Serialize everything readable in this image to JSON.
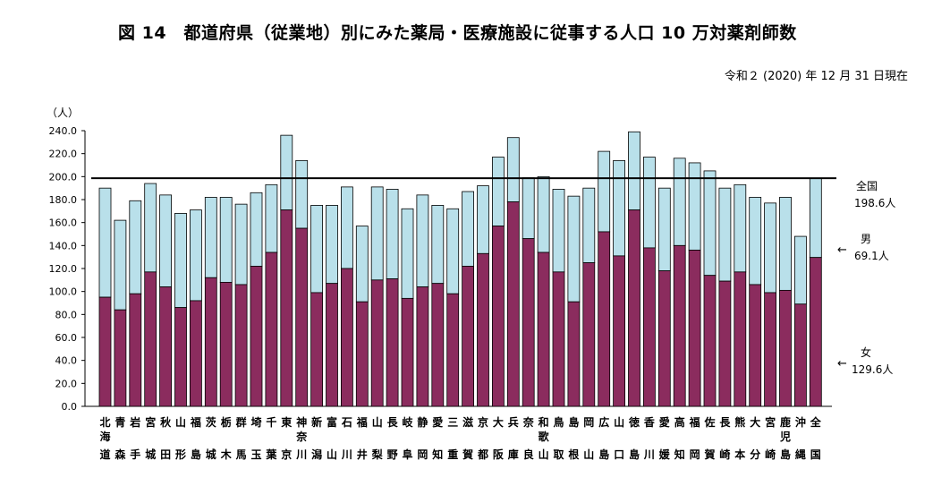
{
  "title": "図 14　都道府県（従業地）別にみた薬局・医療施設に従事する人口 10 万対薬剤師数",
  "date_note": "令和２ (2020) 年 12 月 31 日現在",
  "colors": {
    "female": "#8b2c5e",
    "male": "#b9e0ea",
    "outline": "#000000",
    "national_line": "#000000"
  },
  "chart_data": {
    "type": "bar",
    "stacked": true,
    "ylabel": "（人）",
    "ylim": [
      0,
      240
    ],
    "ytick_step": 20,
    "ytick_labels": [
      "0.0",
      "20.0",
      "40.0",
      "60.0",
      "80.0",
      "100.0",
      "120.0",
      "140.0",
      "160.0",
      "180.0",
      "200.0",
      "220.0",
      "240.0"
    ],
    "categories": [
      [
        "北",
        "海",
        "道"
      ],
      [
        "青",
        "",
        "森"
      ],
      [
        "岩",
        "",
        "手"
      ],
      [
        "宮",
        "",
        "城"
      ],
      [
        "秋",
        "",
        "田"
      ],
      [
        "山",
        "",
        "形"
      ],
      [
        "福",
        "",
        "島"
      ],
      [
        "茨",
        "",
        "城"
      ],
      [
        "栃",
        "",
        "木"
      ],
      [
        "群",
        "",
        "馬"
      ],
      [
        "埼",
        "",
        "玉"
      ],
      [
        "千",
        "",
        "葉"
      ],
      [
        "東",
        "",
        "京"
      ],
      [
        "神",
        "奈",
        "川"
      ],
      [
        "新",
        "",
        "潟"
      ],
      [
        "富",
        "",
        "山"
      ],
      [
        "石",
        "",
        "川"
      ],
      [
        "福",
        "",
        "井"
      ],
      [
        "山",
        "",
        "梨"
      ],
      [
        "長",
        "",
        "野"
      ],
      [
        "岐",
        "",
        "阜"
      ],
      [
        "静",
        "",
        "岡"
      ],
      [
        "愛",
        "",
        "知"
      ],
      [
        "三",
        "",
        "重"
      ],
      [
        "滋",
        "",
        "賀"
      ],
      [
        "京",
        "",
        "都"
      ],
      [
        "大",
        "",
        "阪"
      ],
      [
        "兵",
        "",
        "庫"
      ],
      [
        "奈",
        "",
        "良"
      ],
      [
        "和",
        "歌",
        "山"
      ],
      [
        "鳥",
        "",
        "取"
      ],
      [
        "島",
        "",
        "根"
      ],
      [
        "岡",
        "",
        "山"
      ],
      [
        "広",
        "",
        "島"
      ],
      [
        "山",
        "",
        "口"
      ],
      [
        "徳",
        "",
        "島"
      ],
      [
        "香",
        "",
        "川"
      ],
      [
        "愛",
        "",
        "媛"
      ],
      [
        "高",
        "",
        "知"
      ],
      [
        "福",
        "",
        "岡"
      ],
      [
        "佐",
        "",
        "賀"
      ],
      [
        "長",
        "",
        "崎"
      ],
      [
        "熊",
        "",
        "本"
      ],
      [
        "大",
        "",
        "分"
      ],
      [
        "宮",
        "",
        "崎"
      ],
      [
        "鹿",
        "児",
        "島"
      ],
      [
        "沖",
        "",
        "縄"
      ],
      [
        "全",
        "",
        "国"
      ]
    ],
    "series": [
      {
        "name": "女",
        "values": [
          95,
          84,
          98,
          117,
          104,
          86,
          92,
          112,
          108,
          106,
          122,
          134,
          171,
          155,
          99,
          107,
          120,
          91,
          110,
          111,
          94,
          104,
          107,
          98,
          122,
          133,
          157,
          178,
          146,
          134,
          117,
          91,
          125,
          152,
          131,
          171,
          138,
          118,
          140,
          136,
          114,
          109,
          117,
          106,
          99,
          101,
          89,
          129.6
        ]
      },
      {
        "name": "男",
        "values": [
          95,
          78,
          81,
          77,
          80,
          82,
          79,
          70,
          74,
          70,
          64,
          59,
          65,
          59,
          76,
          68,
          71,
          66,
          81,
          78,
          78,
          80,
          68,
          74,
          65,
          59,
          60,
          56,
          53,
          66,
          72,
          92,
          65,
          70,
          83,
          68,
          79,
          72,
          76,
          76,
          91,
          81,
          76,
          76,
          78,
          81,
          59,
          69.1
        ]
      }
    ],
    "reference_line": {
      "value": 198.6
    },
    "annotations": [
      {
        "text": [
          "全国",
          "198.6人"
        ]
      },
      {
        "text": [
          "男",
          "69.1人"
        ],
        "arrow": "←"
      },
      {
        "text": [
          "女",
          "129.6人"
        ],
        "arrow": "←"
      }
    ],
    "grid": false,
    "legend": "right"
  }
}
